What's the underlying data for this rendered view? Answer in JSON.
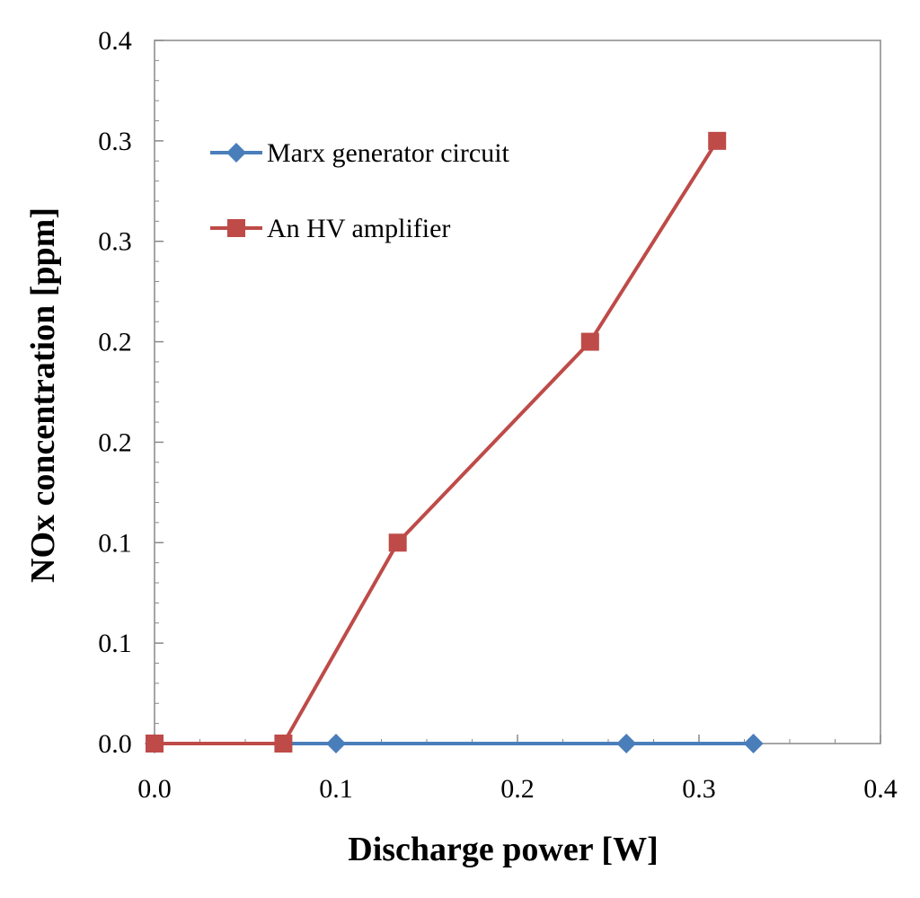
{
  "chart_data": {
    "type": "line",
    "title": "",
    "xlabel": "Discharge power [W]",
    "ylabel": "NOx concentration [ppm]",
    "xlim": [
      0,
      0.4
    ],
    "ylim": [
      0,
      0.35
    ],
    "x_tick_labels": [
      "0.0",
      "0.1",
      "0.2",
      "0.3",
      "0.4"
    ],
    "y_tick_labels": [
      "0.0",
      "0.1",
      "0.1",
      "0.2",
      "0.2",
      "0.3",
      "0.3",
      "0.4"
    ],
    "grid": false,
    "legend_position": "top-left",
    "series": [
      {
        "name": "Marx generator circuit",
        "marker": "diamond",
        "color": "#4a7ebb",
        "x": [
          0.0,
          0.1,
          0.26,
          0.33
        ],
        "y": [
          0.0,
          0.0,
          0.0,
          0.0
        ]
      },
      {
        "name": "An HV amplifier",
        "marker": "square",
        "color": "#be4b48",
        "x": [
          0.0,
          0.071,
          0.134,
          0.24,
          0.31
        ],
        "y": [
          0.0,
          0.0,
          0.1,
          0.2,
          0.3
        ]
      }
    ]
  }
}
